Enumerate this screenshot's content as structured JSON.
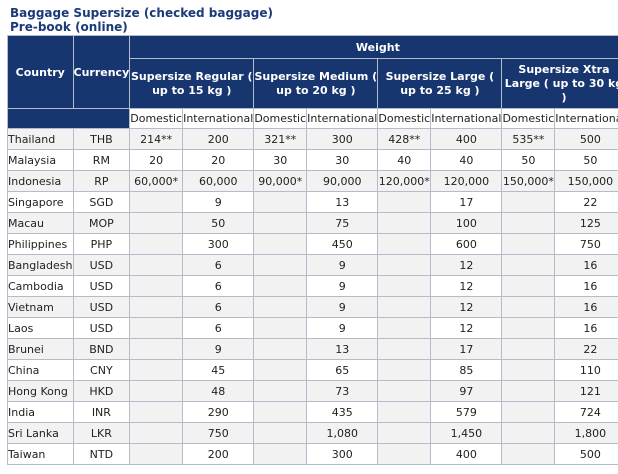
{
  "title": "Baggage Supersize (checked baggage)",
  "subtitle": "Pre-book (online)",
  "header": {
    "country": "Country",
    "currency": "Currency",
    "weight": "Weight",
    "sizes": [
      "Supersize Regular ( up to 15 kg )",
      "Supersize Medium ( up to 20 kg )",
      "Supersize Large ( up to 25 kg )",
      "Supersize Xtra Large ( up to 30 kg )"
    ],
    "domestic": "Domestic",
    "international": "International"
  },
  "rows": [
    {
      "country": "Thailand",
      "currency": "THB",
      "values": [
        "214**",
        "200",
        "321**",
        "300",
        "428**",
        "400",
        "535**",
        "500"
      ]
    },
    {
      "country": "Malaysia",
      "currency": "RM",
      "values": [
        "20",
        "20",
        "30",
        "30",
        "40",
        "40",
        "50",
        "50"
      ]
    },
    {
      "country": "Indonesia",
      "currency": "RP",
      "values": [
        "60,000*",
        "60,000",
        "90,000*",
        "90,000",
        "120,000*",
        "120,000",
        "150,000*",
        "150,000"
      ]
    },
    {
      "country": "Singapore",
      "currency": "SGD",
      "values": [
        "",
        "9",
        "",
        "13",
        "",
        "17",
        "",
        "22"
      ]
    },
    {
      "country": "Macau",
      "currency": "MOP",
      "values": [
        "",
        "50",
        "",
        "75",
        "",
        "100",
        "",
        "125"
      ]
    },
    {
      "country": "Philippines",
      "currency": "PHP",
      "values": [
        "",
        "300",
        "",
        "450",
        "",
        "600",
        "",
        "750"
      ]
    },
    {
      "country": "Bangladesh",
      "currency": "USD",
      "values": [
        "",
        "6",
        "",
        "9",
        "",
        "12",
        "",
        "16"
      ]
    },
    {
      "country": "Cambodia",
      "currency": "USD",
      "values": [
        "",
        "6",
        "",
        "9",
        "",
        "12",
        "",
        "16"
      ]
    },
    {
      "country": "Vietnam",
      "currency": "USD",
      "values": [
        "",
        "6",
        "",
        "9",
        "",
        "12",
        "",
        "16"
      ]
    },
    {
      "country": "Laos",
      "currency": "USD",
      "values": [
        "",
        "6",
        "",
        "9",
        "",
        "12",
        "",
        "16"
      ]
    },
    {
      "country": "Brunei",
      "currency": "BND",
      "values": [
        "",
        "9",
        "",
        "13",
        "",
        "17",
        "",
        "22"
      ]
    },
    {
      "country": "China",
      "currency": "CNY",
      "values": [
        "",
        "45",
        "",
        "65",
        "",
        "85",
        "",
        "110"
      ]
    },
    {
      "country": "Hong Kong",
      "currency": "HKD",
      "values": [
        "",
        "48",
        "",
        "73",
        "",
        "97",
        "",
        "121"
      ]
    },
    {
      "country": "India",
      "currency": "INR",
      "values": [
        "",
        "290",
        "",
        "435",
        "",
        "579",
        "",
        "724"
      ]
    },
    {
      "country": "Sri Lanka",
      "currency": "LKR",
      "values": [
        "",
        "750",
        "",
        "1,080",
        "",
        "1,450",
        "",
        "1,800"
      ]
    },
    {
      "country": "Taiwan",
      "currency": "NTD",
      "values": [
        "",
        "200",
        "",
        "300",
        "",
        "400",
        "",
        "500"
      ]
    }
  ]
}
